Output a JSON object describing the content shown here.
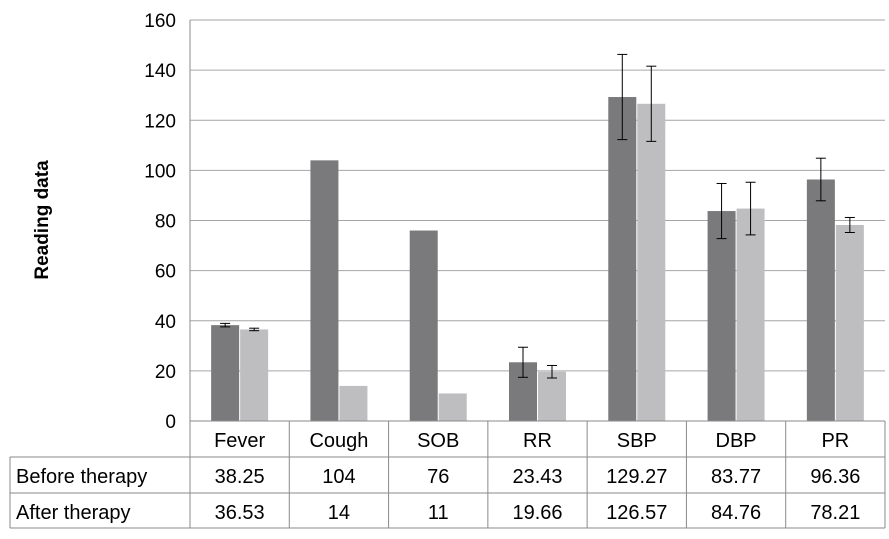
{
  "chart_data": {
    "type": "bar",
    "title": "",
    "xlabel": "",
    "ylabel": "Reading data",
    "ylim": [
      0,
      160
    ],
    "yticks": [
      0,
      20,
      40,
      60,
      80,
      100,
      120,
      140,
      160
    ],
    "grid": "horizontal",
    "categories": [
      "Fever",
      "Cough",
      "SOB",
      "RR",
      "SBP",
      "DBP",
      "PR"
    ],
    "series": [
      {
        "name": "Before therapy",
        "color": "#7a7a7c",
        "values": [
          38.25,
          104,
          76,
          23.43,
          129.27,
          83.77,
          96.36
        ],
        "value_labels": [
          "38.25",
          "104",
          "76",
          "23.43",
          "129.27",
          "83.77",
          "96.36"
        ],
        "errors": [
          0.7,
          null,
          null,
          6,
          17,
          11,
          8.5
        ]
      },
      {
        "name": "After therapy",
        "color": "#bebec0",
        "values": [
          36.53,
          14,
          11,
          19.66,
          126.57,
          84.76,
          78.21
        ],
        "value_labels": [
          "36.53",
          "14",
          "11",
          "19.66",
          "126.57",
          "84.76",
          "78.21"
        ],
        "errors": [
          0.5,
          null,
          null,
          2.5,
          15,
          10.5,
          3
        ]
      }
    ],
    "data_table": true
  }
}
